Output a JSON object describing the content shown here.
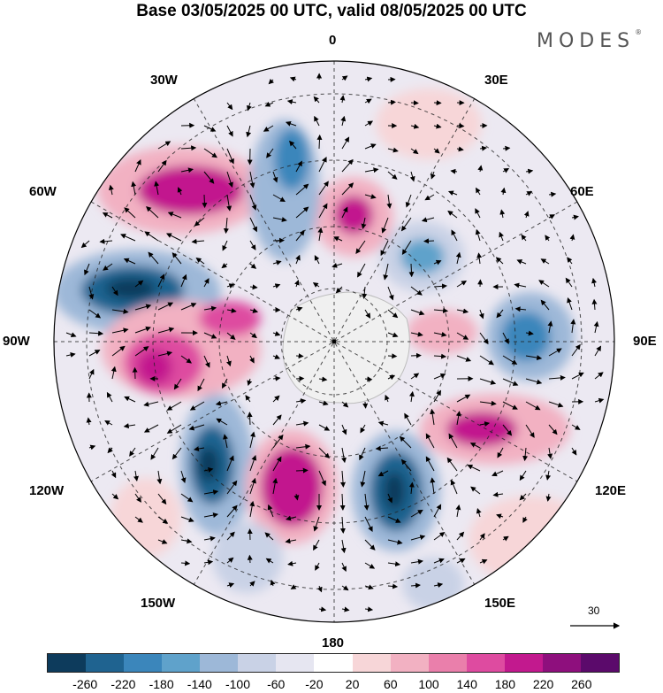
{
  "title": "Base 03/05/2025 00 UTC, valid 08/05/2025 00 UTC",
  "brand": "MODES",
  "brand_mark": "®",
  "longitude_labels": {
    "lon0": "0",
    "lon30e": "30E",
    "lon60e": "60E",
    "lon90e": "90E",
    "lon120e": "120E",
    "lon150e": "150E",
    "lon180": "180",
    "lon150w": "150W",
    "lon120w": "120W",
    "lon90w": "90W",
    "lon60w": "60W",
    "lon30w": "30W"
  },
  "vector_scale": {
    "value": "30"
  },
  "colorbar": {
    "colors": [
      "#0d3b5c",
      "#1f6390",
      "#3b86bb",
      "#5fa2cb",
      "#9db8d8",
      "#c9d2e6",
      "#e6e6f1",
      "#ffffff",
      "#f7d6d8",
      "#f2b1c2",
      "#ea7fab",
      "#de4ba0",
      "#c2198e",
      "#8e0f7d",
      "#5b0a6b"
    ],
    "tick_labels": [
      "-260",
      "-220",
      "-180",
      "-140",
      "-100",
      "-60",
      "-20",
      "20",
      "60",
      "100",
      "140",
      "180",
      "220",
      "260"
    ]
  },
  "anomaly_centers": [
    {
      "sign": "positive",
      "value": 220,
      "near": "60W-30W"
    },
    {
      "sign": "negative",
      "value": -220,
      "near": "70W"
    },
    {
      "sign": "positive",
      "value": 200,
      "near": "90W-100W"
    },
    {
      "sign": "negative",
      "value": -200,
      "near": "130W"
    },
    {
      "sign": "positive",
      "value": 200,
      "near": "165W"
    },
    {
      "sign": "negative",
      "value": -220,
      "near": "140E"
    },
    {
      "sign": "positive",
      "value": 180,
      "near": "110E"
    },
    {
      "sign": "negative",
      "value": -140,
      "near": "85E"
    },
    {
      "sign": "negative",
      "value": -100,
      "near": "40E"
    },
    {
      "sign": "positive",
      "value": 160,
      "near": "15E"
    },
    {
      "sign": "negative",
      "value": -140,
      "near": "15W"
    }
  ]
}
